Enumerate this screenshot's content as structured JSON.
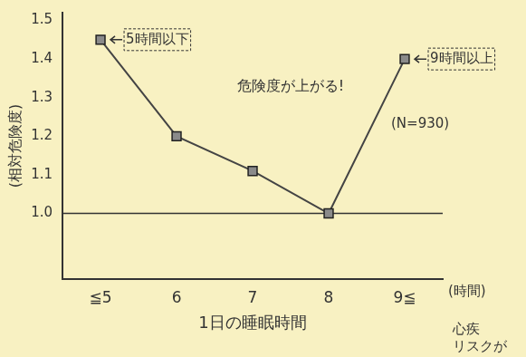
{
  "chart_data": {
    "type": "line",
    "x_label": "1日の睡眠時間",
    "x_unit": "(時間)",
    "y_label": "(相対危険度)",
    "categories": [
      "≦5",
      "6",
      "7",
      "8",
      "9≦"
    ],
    "values": [
      1.45,
      1.2,
      1.11,
      1.0,
      1.4
    ],
    "color": "#444444",
    "marker": "square",
    "ylim": [
      0.83,
      1.52
    ],
    "yticks": [
      {
        "value": 1,
        "label": "1.0"
      },
      1.1,
      1.2,
      1.3,
      1.4,
      1.5
    ],
    "grid": false,
    "reference_line": 1,
    "annotations": [
      "5時間以下",
      "9時間以上",
      "危険度が上がる!",
      "(N=930)",
      "心疾",
      "リスクが"
    ]
  }
}
